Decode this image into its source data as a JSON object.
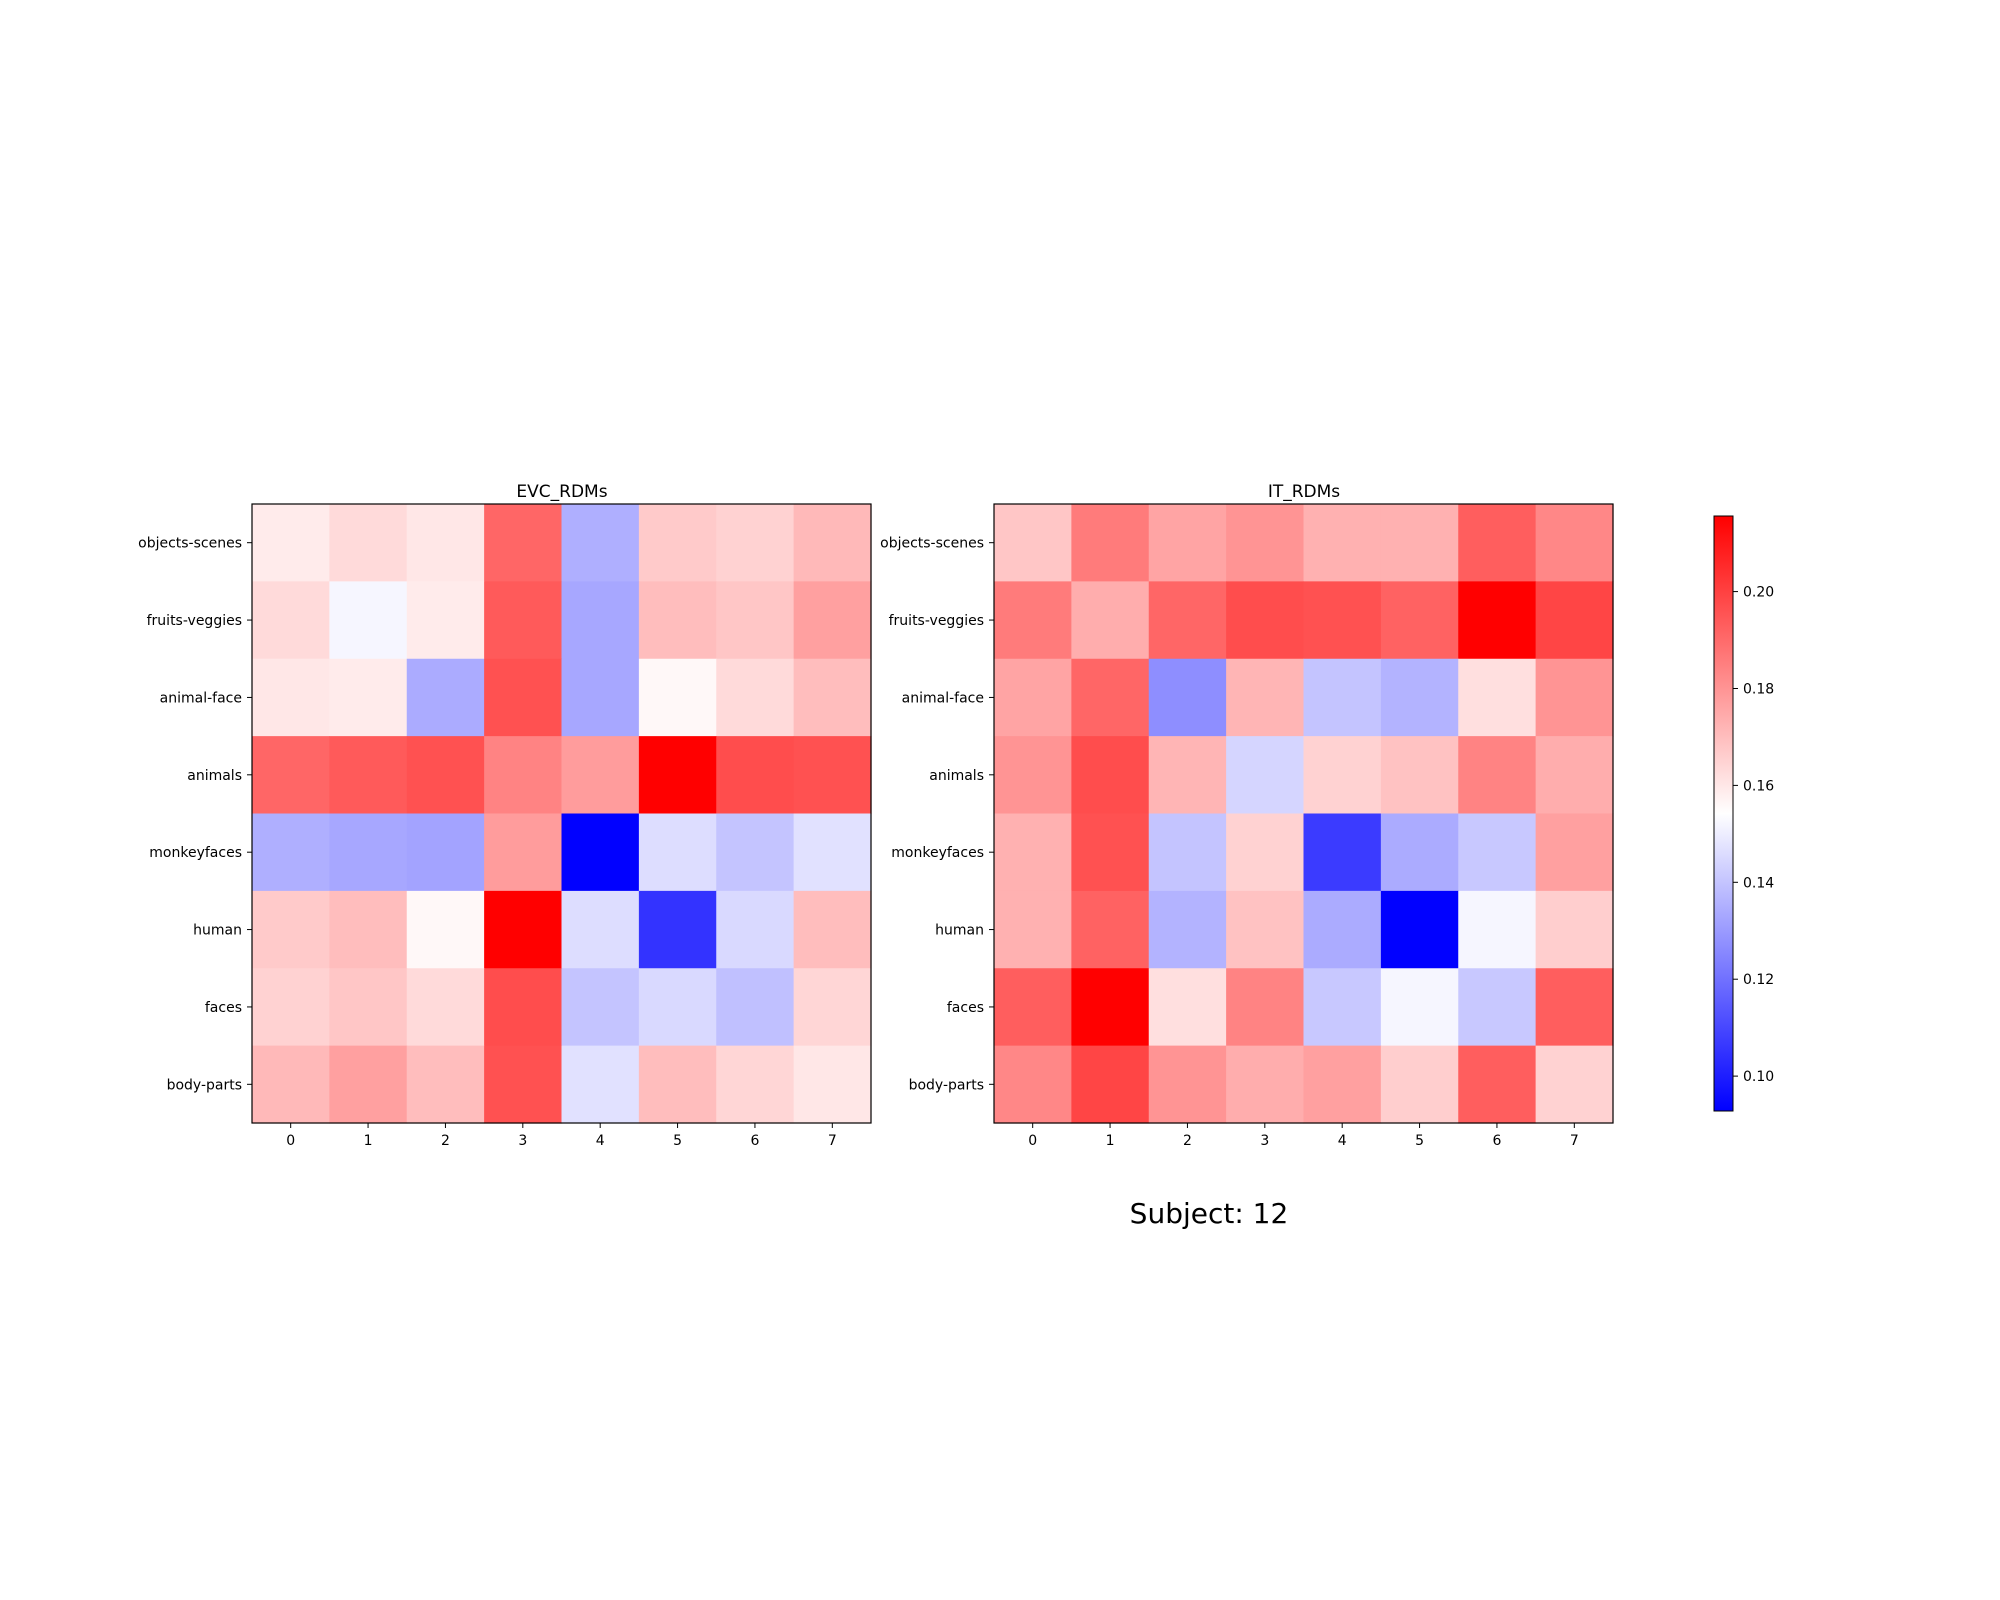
{
  "chart_data": [
    {
      "type": "heatmap",
      "title": "EVC_RDMs",
      "xticklabels": [
        "0",
        "1",
        "2",
        "3",
        "4",
        "5",
        "6",
        "7"
      ],
      "yticklabels": [
        "objects-scenes",
        "fruits-veggies",
        "animal-face",
        "animals",
        "monkeyfaces",
        "human",
        "faces",
        "body-parts"
      ],
      "values": [
        [
          0.159,
          0.163,
          0.16,
          0.191,
          0.135,
          0.167,
          0.165,
          0.171
        ],
        [
          0.163,
          0.152,
          0.159,
          0.194,
          0.133,
          0.17,
          0.168,
          0.177
        ],
        [
          0.16,
          0.159,
          0.134,
          0.196,
          0.133,
          0.156,
          0.163,
          0.17
        ],
        [
          0.191,
          0.194,
          0.196,
          0.184,
          0.178,
          0.216,
          0.197,
          0.196
        ],
        [
          0.135,
          0.133,
          0.132,
          0.178,
          0.093,
          0.146,
          0.14,
          0.147
        ],
        [
          0.167,
          0.17,
          0.156,
          0.216,
          0.146,
          0.105,
          0.145,
          0.17
        ],
        [
          0.165,
          0.168,
          0.163,
          0.197,
          0.14,
          0.145,
          0.139,
          0.164
        ],
        [
          0.171,
          0.177,
          0.17,
          0.196,
          0.147,
          0.17,
          0.164,
          0.16
        ]
      ]
    },
    {
      "type": "heatmap",
      "title": "IT_RDMs",
      "xticklabels": [
        "0",
        "1",
        "2",
        "3",
        "4",
        "5",
        "6",
        "7"
      ],
      "yticklabels": [
        "objects-scenes",
        "fruits-veggies",
        "animal-face",
        "animals",
        "monkeyfaces",
        "human",
        "faces",
        "body-parts"
      ],
      "values": [
        [
          0.168,
          0.186,
          0.176,
          0.18,
          0.173,
          0.173,
          0.193,
          0.183
        ],
        [
          0.186,
          0.174,
          0.191,
          0.197,
          0.196,
          0.192,
          0.216,
          0.199
        ],
        [
          0.176,
          0.191,
          0.127,
          0.172,
          0.14,
          0.136,
          0.162,
          0.18
        ],
        [
          0.18,
          0.197,
          0.172,
          0.144,
          0.165,
          0.169,
          0.184,
          0.174
        ],
        [
          0.173,
          0.196,
          0.14,
          0.165,
          0.107,
          0.134,
          0.141,
          0.177
        ],
        [
          0.173,
          0.192,
          0.136,
          0.169,
          0.134,
          0.093,
          0.152,
          0.166
        ],
        [
          0.193,
          0.216,
          0.162,
          0.184,
          0.141,
          0.152,
          0.141,
          0.193
        ],
        [
          0.183,
          0.199,
          0.18,
          0.174,
          0.177,
          0.166,
          0.193,
          0.165
        ]
      ]
    }
  ],
  "colorbar": {
    "cmap": "bwr",
    "vmin": 0.0928,
    "vmax": 0.2156,
    "ticks": [
      0.1,
      0.12,
      0.14,
      0.16,
      0.18,
      0.2
    ],
    "ticklabels": [
      "0.10",
      "0.12",
      "0.14",
      "0.16",
      "0.18",
      "0.20"
    ]
  },
  "suptitle": "Subject: 12",
  "colors": {
    "low": "#0000ff",
    "mid": "#ffffff",
    "high": "#ff0000"
  }
}
